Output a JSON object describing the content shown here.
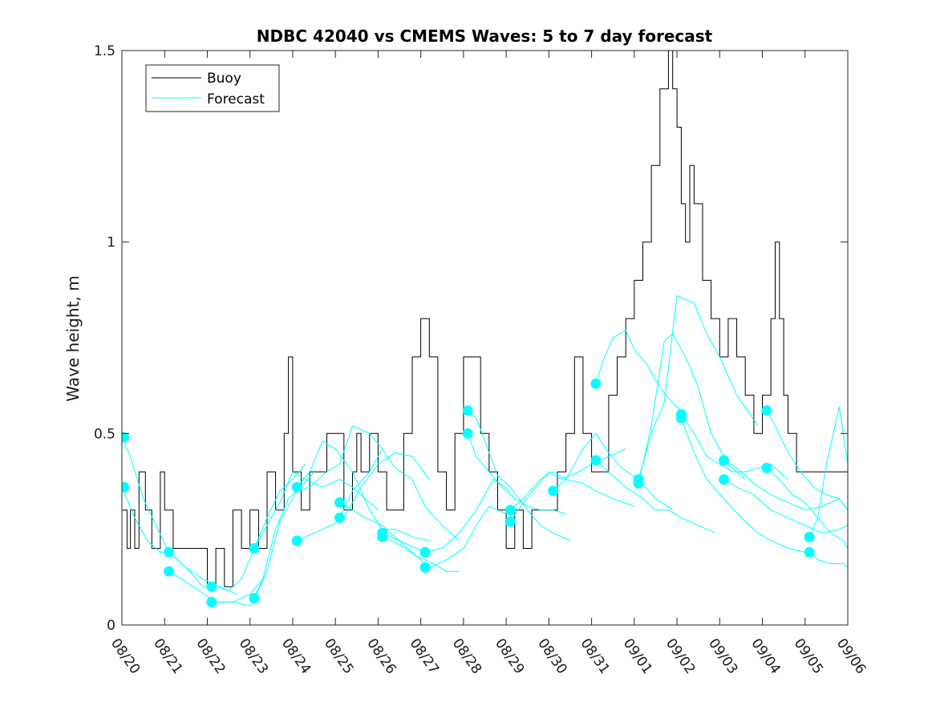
{
  "chart_data": {
    "type": "line",
    "title": "NDBC 42040 vs CMEMS Waves: 5 to 7 day forecast",
    "xlabel": "",
    "ylabel": "Wave height, m",
    "xlim": [
      0,
      17
    ],
    "ylim": [
      0,
      1.5
    ],
    "yticks": [
      0,
      0.5,
      1,
      1.5
    ],
    "yticklabels": [
      "0",
      "0.5",
      "1",
      "1.5"
    ],
    "xticklabels": [
      "08/20",
      "08/21",
      "08/22",
      "08/23",
      "08/24",
      "08/25",
      "08/26",
      "08/27",
      "08/28",
      "08/29",
      "08/30",
      "08/31",
      "09/01",
      "09/02",
      "09/03",
      "09/04",
      "09/05",
      "09/06"
    ],
    "legend": {
      "location": "top-left",
      "entries": [
        {
          "name": "Buoy",
          "color": "#000000"
        },
        {
          "name": "Forecast",
          "color": "#00ffff"
        }
      ]
    },
    "series": [
      {
        "name": "Buoy",
        "color": "#000000",
        "step": true,
        "x": [
          0,
          0.12,
          0.2,
          0.3,
          0.4,
          0.55,
          0.7,
          0.9,
          1.0,
          1.2,
          1.4,
          1.6,
          1.8,
          2.0,
          2.2,
          2.4,
          2.6,
          2.8,
          3.0,
          3.2,
          3.4,
          3.6,
          3.8,
          3.9,
          4.0,
          4.2,
          4.4,
          4.6,
          4.8,
          5.0,
          5.2,
          5.4,
          5.5,
          5.6,
          5.8,
          6.0,
          6.2,
          6.4,
          6.6,
          6.8,
          7.0,
          7.2,
          7.4,
          7.6,
          7.8,
          8.0,
          8.2,
          8.4,
          8.6,
          8.8,
          9.0,
          9.2,
          9.4,
          9.6,
          9.8,
          10.0,
          10.2,
          10.4,
          10.6,
          10.8,
          11.0,
          11.2,
          11.4,
          11.6,
          11.8,
          12.0,
          12.2,
          12.4,
          12.6,
          12.8,
          12.9,
          13.0,
          13.1,
          13.2,
          13.3,
          13.4,
          13.6,
          13.8,
          14.0,
          14.2,
          14.4,
          14.6,
          14.8,
          15.0,
          15.2,
          15.3,
          15.4,
          15.5,
          15.6,
          15.8,
          16.0,
          16.2,
          16.4
        ],
        "values": [
          0.3,
          0.2,
          0.3,
          0.2,
          0.4,
          0.3,
          0.2,
          0.4,
          0.3,
          0.2,
          0.2,
          0.2,
          0.2,
          0.1,
          0.2,
          0.1,
          0.3,
          0.2,
          0.3,
          0.2,
          0.4,
          0.3,
          0.5,
          0.7,
          0.4,
          0.3,
          0.4,
          0.4,
          0.5,
          0.5,
          0.3,
          0.4,
          0.5,
          0.4,
          0.5,
          0.4,
          0.3,
          0.3,
          0.5,
          0.7,
          0.8,
          0.7,
          0.4,
          0.3,
          0.5,
          0.7,
          0.7,
          0.5,
          0.4,
          0.3,
          0.2,
          0.3,
          0.2,
          0.3,
          0.3,
          0.3,
          0.4,
          0.5,
          0.7,
          0.5,
          0.4,
          0.4,
          0.6,
          0.7,
          0.8,
          0.9,
          1.0,
          1.2,
          1.4,
          1.5,
          1.4,
          1.3,
          1.1,
          1.0,
          1.2,
          1.1,
          0.9,
          0.8,
          0.7,
          0.8,
          0.7,
          0.6,
          0.5,
          0.6,
          0.8,
          1.0,
          0.8,
          0.6,
          0.5,
          0.4,
          0.4,
          0.4,
          0.4
        ]
      },
      {
        "name": "Forecast",
        "color": "#00ffff",
        "runs": [
          {
            "x": [
              0.0,
              0.2,
              0.5,
              0.8,
              1.1,
              1.5,
              1.9,
              2.2
            ],
            "values": [
              0.49,
              0.44,
              0.33,
              0.26,
              0.19,
              0.15,
              0.1,
              0.1
            ]
          },
          {
            "x": [
              0.0,
              0.3,
              0.6,
              0.9,
              1.1,
              1.5,
              1.9,
              2.3,
              2.7
            ],
            "values": [
              0.36,
              0.28,
              0.22,
              0.19,
              0.19,
              0.15,
              0.12,
              0.1,
              0.08
            ]
          },
          {
            "x": [
              1.1,
              1.4,
              1.8,
              2.2,
              2.6,
              3.0,
              3.3
            ],
            "values": [
              0.14,
              0.12,
              0.09,
              0.06,
              0.06,
              0.08,
              0.12
            ]
          },
          {
            "x": [
              2.2,
              2.5,
              2.8,
              3.1,
              3.4,
              3.7,
              4.0,
              4.3
            ],
            "values": [
              0.1,
              0.09,
              0.12,
              0.2,
              0.28,
              0.35,
              0.38,
              0.42
            ]
          },
          {
            "x": [
              2.2,
              2.6,
              3.0,
              3.3,
              3.6,
              3.9,
              4.2,
              4.5
            ],
            "values": [
              0.06,
              0.06,
              0.05,
              0.12,
              0.25,
              0.33,
              0.36,
              0.4
            ]
          },
          {
            "x": [
              3.1,
              3.4,
              3.7,
              4.0,
              4.3,
              4.7,
              5.1,
              5.4,
              5.7,
              6.0
            ],
            "values": [
              0.2,
              0.26,
              0.32,
              0.4,
              0.38,
              0.36,
              0.38,
              0.36,
              0.33,
              0.3
            ]
          },
          {
            "x": [
              3.1,
              3.4,
              3.7,
              4.1,
              4.4,
              4.8,
              5.1,
              5.4,
              5.8,
              6.1
            ],
            "values": [
              0.07,
              0.14,
              0.27,
              0.35,
              0.36,
              0.4,
              0.42,
              0.52,
              0.5,
              0.46
            ]
          },
          {
            "x": [
              4.1,
              4.5,
              4.9,
              5.2,
              5.6,
              6.0,
              6.4,
              6.8,
              7.2
            ],
            "values": [
              0.22,
              0.24,
              0.26,
              0.28,
              0.36,
              0.42,
              0.45,
              0.44,
              0.38
            ]
          },
          {
            "x": [
              4.1,
              4.4,
              4.7,
              5.0,
              5.4,
              5.8,
              6.1,
              6.4,
              6.8,
              7.2
            ],
            "values": [
              0.36,
              0.4,
              0.48,
              0.46,
              0.4,
              0.3,
              0.25,
              0.25,
              0.23,
              0.22
            ]
          },
          {
            "x": [
              5.1,
              5.4,
              5.7,
              6.1,
              6.5,
              6.9,
              7.3,
              7.6,
              7.9
            ],
            "values": [
              0.32,
              0.3,
              0.28,
              0.26,
              0.22,
              0.18,
              0.16,
              0.14,
              0.14
            ]
          },
          {
            "x": [
              5.1,
              5.4,
              5.8,
              6.1,
              6.4,
              6.8,
              7.1,
              7.5,
              7.9
            ],
            "values": [
              0.28,
              0.35,
              0.4,
              0.46,
              0.41,
              0.38,
              0.31,
              0.26,
              0.22
            ]
          },
          {
            "x": [
              6.1,
              6.5,
              6.9,
              7.1,
              7.5,
              7.9,
              8.3,
              8.7,
              9.1
            ],
            "values": [
              0.24,
              0.22,
              0.2,
              0.19,
              0.2,
              0.24,
              0.3,
              0.38,
              0.35
            ]
          },
          {
            "x": [
              6.1,
              6.5,
              6.9,
              7.2,
              7.6,
              8.0,
              8.3,
              8.6,
              9.0
            ],
            "values": [
              0.23,
              0.21,
              0.18,
              0.15,
              0.17,
              0.2,
              0.26,
              0.31,
              0.29
            ]
          },
          {
            "x": [
              8.1,
              8.3,
              8.5,
              8.8,
              9.1,
              9.5,
              9.8,
              10.1,
              10.5
            ],
            "values": [
              0.56,
              0.54,
              0.48,
              0.39,
              0.36,
              0.3,
              0.26,
              0.24,
              0.22
            ]
          },
          {
            "x": [
              8.1,
              8.3,
              8.6,
              8.9,
              9.2,
              9.5,
              9.8,
              10.1,
              10.4
            ],
            "values": [
              0.5,
              0.44,
              0.4,
              0.36,
              0.33,
              0.31,
              0.3,
              0.3,
              0.29
            ]
          },
          {
            "x": [
              9.1,
              9.4,
              9.8,
              10.1,
              10.4,
              10.8,
              11.1,
              11.5,
              12.0
            ],
            "values": [
              0.3,
              0.33,
              0.38,
              0.4,
              0.38,
              0.37,
              0.35,
              0.33,
              0.31
            ]
          },
          {
            "x": [
              9.1,
              9.4,
              9.7,
              10.0,
              10.3,
              10.7,
              11.0,
              11.4,
              11.8
            ],
            "values": [
              0.27,
              0.32,
              0.36,
              0.4,
              0.38,
              0.4,
              0.42,
              0.44,
              0.46
            ]
          },
          {
            "x": [
              10.1,
              10.4,
              10.8,
              11.1,
              11.4,
              11.7,
              12.1,
              12.5,
              12.9
            ],
            "values": [
              0.35,
              0.38,
              0.46,
              0.5,
              0.45,
              0.41,
              0.38,
              0.33,
              0.3
            ]
          },
          {
            "x": [
              11.1,
              11.3,
              11.5,
              11.8,
              12.0,
              12.3,
              12.6,
              12.9,
              13.2
            ],
            "values": [
              0.63,
              0.7,
              0.75,
              0.77,
              0.72,
              0.68,
              0.62,
              0.58,
              0.55
            ]
          },
          {
            "x": [
              11.1,
              11.4,
              11.8,
              12.2,
              12.5,
              12.8,
              13.1,
              13.5,
              13.9
            ],
            "values": [
              0.43,
              0.4,
              0.36,
              0.33,
              0.3,
              0.3,
              0.28,
              0.26,
              0.24
            ]
          },
          {
            "x": [
              12.1,
              12.4,
              12.7,
              13.0,
              13.4,
              13.7,
              14.0,
              14.4,
              14.9
            ],
            "values": [
              0.38,
              0.5,
              0.58,
              0.86,
              0.84,
              0.76,
              0.7,
              0.6,
              0.52
            ]
          },
          {
            "x": [
              12.1,
              12.4,
              12.7,
              12.9,
              13.2,
              13.5,
              13.8,
              14.2,
              14.6
            ],
            "values": [
              0.37,
              0.52,
              0.74,
              0.76,
              0.7,
              0.62,
              0.5,
              0.42,
              0.38
            ]
          },
          {
            "x": [
              13.1,
              13.4,
              13.7,
              14.0,
              14.3,
              14.6,
              14.9,
              15.2,
              15.6
            ],
            "values": [
              0.55,
              0.5,
              0.44,
              0.42,
              0.4,
              0.4,
              0.41,
              0.42,
              0.38
            ]
          },
          {
            "x": [
              13.1,
              13.4,
              13.7,
              14.1,
              14.5,
              14.9,
              15.2,
              15.6,
              16.0
            ],
            "values": [
              0.54,
              0.45,
              0.38,
              0.33,
              0.28,
              0.24,
              0.22,
              0.2,
              0.19
            ]
          },
          {
            "x": [
              14.1,
              14.4,
              14.8,
              15.2,
              15.6,
              16.0,
              16.4,
              16.8,
              17.0
            ],
            "values": [
              0.43,
              0.41,
              0.37,
              0.34,
              0.32,
              0.3,
              0.31,
              0.33,
              0.3
            ]
          },
          {
            "x": [
              14.1,
              14.4,
              14.8,
              15.2,
              15.6,
              16.0,
              16.4,
              16.8,
              17.0
            ],
            "values": [
              0.38,
              0.36,
              0.34,
              0.3,
              0.28,
              0.26,
              0.24,
              0.25,
              0.26
            ]
          },
          {
            "x": [
              15.1,
              15.3,
              15.6,
              15.9,
              16.2,
              16.5,
              16.8,
              17.0
            ],
            "values": [
              0.56,
              0.52,
              0.45,
              0.4,
              0.36,
              0.34,
              0.33,
              0.3
            ]
          },
          {
            "x": [
              15.1,
              15.4,
              15.7,
              16.0,
              16.3,
              16.6,
              16.9,
              17.0
            ],
            "values": [
              0.41,
              0.38,
              0.34,
              0.32,
              0.28,
              0.24,
              0.22,
              0.2
            ]
          },
          {
            "x": [
              16.1,
              16.3,
              16.5,
              16.8,
              17.0
            ],
            "values": [
              0.23,
              0.28,
              0.42,
              0.57,
              0.42
            ]
          },
          {
            "x": [
              16.1,
              16.3,
              16.6,
              16.9,
              17.0
            ],
            "values": [
              0.19,
              0.17,
              0.16,
              0.16,
              0.15
            ]
          }
        ],
        "marker_points": [
          {
            "x": 0.05,
            "y": 0.49
          },
          {
            "x": 0.05,
            "y": 0.36
          },
          {
            "x": 1.1,
            "y": 0.19
          },
          {
            "x": 1.1,
            "y": 0.14
          },
          {
            "x": 2.1,
            "y": 0.1
          },
          {
            "x": 2.1,
            "y": 0.06
          },
          {
            "x": 3.1,
            "y": 0.2
          },
          {
            "x": 3.1,
            "y": 0.07
          },
          {
            "x": 4.1,
            "y": 0.36
          },
          {
            "x": 4.1,
            "y": 0.22
          },
          {
            "x": 5.1,
            "y": 0.32
          },
          {
            "x": 5.1,
            "y": 0.28
          },
          {
            "x": 6.1,
            "y": 0.24
          },
          {
            "x": 6.1,
            "y": 0.23
          },
          {
            "x": 7.1,
            "y": 0.19
          },
          {
            "x": 7.1,
            "y": 0.15
          },
          {
            "x": 8.1,
            "y": 0.56
          },
          {
            "x": 8.1,
            "y": 0.5
          },
          {
            "x": 9.1,
            "y": 0.3
          },
          {
            "x": 9.1,
            "y": 0.27
          },
          {
            "x": 10.1,
            "y": 0.35
          },
          {
            "x": 11.1,
            "y": 0.63
          },
          {
            "x": 11.1,
            "y": 0.43
          },
          {
            "x": 12.1,
            "y": 0.38
          },
          {
            "x": 12.1,
            "y": 0.37
          },
          {
            "x": 13.1,
            "y": 0.55
          },
          {
            "x": 13.1,
            "y": 0.54
          },
          {
            "x": 14.1,
            "y": 0.43
          },
          {
            "x": 14.1,
            "y": 0.38
          },
          {
            "x": 15.1,
            "y": 0.56
          },
          {
            "x": 15.1,
            "y": 0.41
          },
          {
            "x": 16.1,
            "y": 0.23
          },
          {
            "x": 16.1,
            "y": 0.19
          }
        ]
      }
    ]
  }
}
